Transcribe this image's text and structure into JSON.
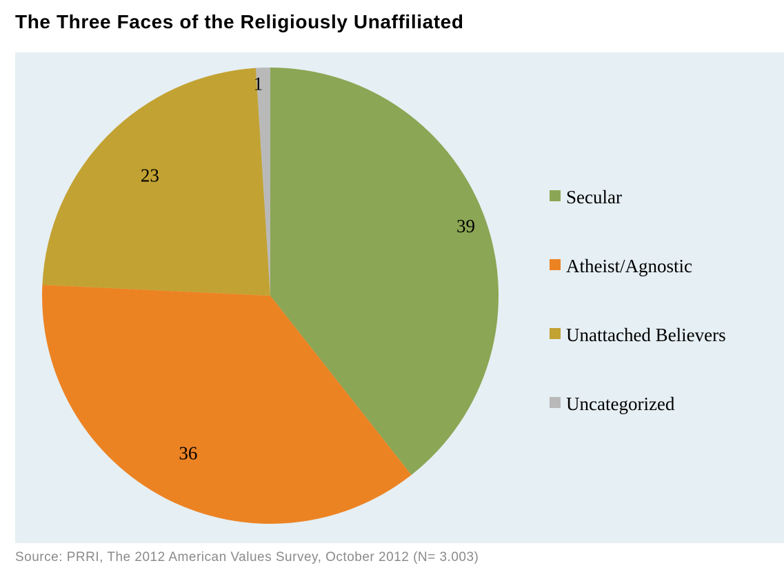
{
  "chart_data": {
    "type": "pie",
    "title": "The Three Faces of the Religiously Unaffiliated",
    "categories": [
      "Secular",
      "Atheist/Agnostic",
      "Unattached Believers",
      "Uncategorized"
    ],
    "values": [
      39,
      36,
      23,
      1
    ],
    "data_labels": [
      "39",
      "36",
      "23",
      "1"
    ],
    "colors": [
      "#8ba655",
      "#ec8323",
      "#c2a232",
      "#b9b9b9"
    ],
    "legend_position": "right",
    "start_angle": "12 o'clock, clockwise",
    "source": "Source: PRRI, The 2012 American Values Survey, October 2012 (N= 3.003)"
  }
}
